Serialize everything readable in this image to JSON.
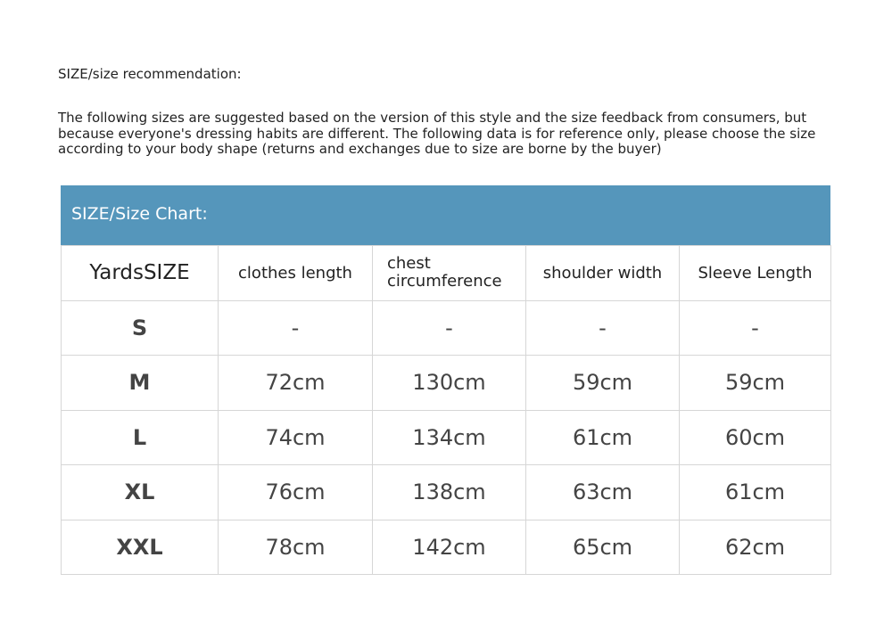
{
  "recommendation_heading": "SIZE/size recommendation:",
  "note": "The following sizes are suggested based on the version of this style and the size feedback from consumers, but because everyone's dressing habits are different. The following data is for reference only, please choose the size according to your body shape (returns and exchanges due to size are borne by the buyer)",
  "chart": {
    "title": "SIZE/Size Chart:",
    "header_color": "#5596bb",
    "columns": [
      "YardsSIZE",
      "clothes length",
      "chest circumference",
      "shoulder width",
      "Sleeve Length"
    ],
    "rows": [
      [
        "S",
        "-",
        "-",
        "-",
        "-"
      ],
      [
        "M",
        "72cm",
        "130cm",
        "59cm",
        "59cm"
      ],
      [
        "L",
        "74cm",
        "134cm",
        "61cm",
        "60cm"
      ],
      [
        "XL",
        "76cm",
        "138cm",
        "63cm",
        "61cm"
      ],
      [
        "XXL",
        "78cm",
        "142cm",
        "65cm",
        "62cm"
      ]
    ]
  }
}
